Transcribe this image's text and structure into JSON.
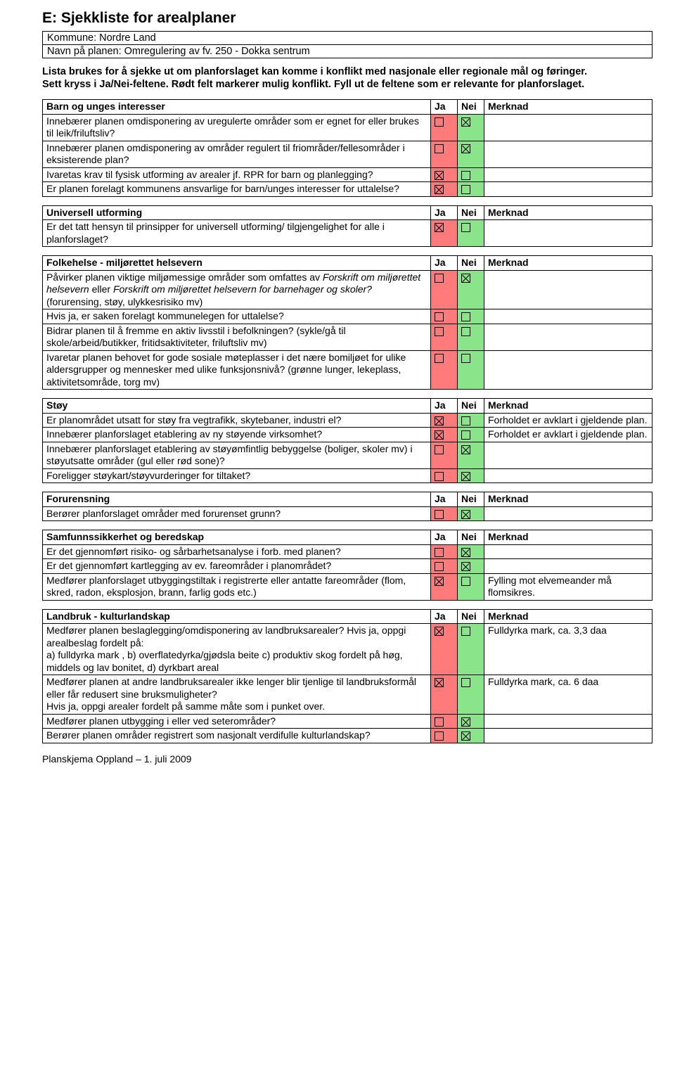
{
  "title": "E:  Sjekkliste for arealplaner",
  "meta": {
    "kommune": "Kommune: Nordre Land",
    "navn": "Navn på planen: Omregulering av fv. 250 - Dokka sentrum"
  },
  "intro_line1": "Lista brukes for å sjekke ut om planforslaget kan komme i konflikt med nasjonale eller regionale mål og føringer.",
  "intro_line2": "Sett kryss i Ja/Nei-feltene. Rødt felt markerer mulig konflikt. Fyll ut de feltene som er relevante for planforslaget.",
  "headers": {
    "ja": "Ja",
    "nei": "Nei",
    "merknad": "Merknad"
  },
  "colors": {
    "ja_bg": "#ff7a7a",
    "nei_bg": "#8ae48a",
    "border": "#000000",
    "text": "#000000",
    "background": "#ffffff"
  },
  "sections": [
    {
      "title": "Barn og unges interesser",
      "rows": [
        {
          "q": "Innebærer planen omdisponering av uregulerte områder som er egnet for eller brukes til leik/friluftsliv?",
          "ja": false,
          "nei": true,
          "m": ""
        },
        {
          "q": "Innebærer planen omdisponering av områder regulert til friområder/fellesområder i eksisterende plan?",
          "ja": false,
          "nei": true,
          "m": ""
        },
        {
          "q": "Ivaretas krav til fysisk utforming av arealer jf. RPR for barn og planlegging?",
          "ja": true,
          "nei": false,
          "m": ""
        },
        {
          "q": "Er planen forelagt kommunens ansvarlige for barn/unges interesser for uttalelse?",
          "ja": true,
          "nei": false,
          "m": ""
        }
      ]
    },
    {
      "title": "Universell utforming",
      "rows": [
        {
          "q": "Er det tatt hensyn til prinsipper for universell utforming/ tilgjengelighet for alle i planforslaget?",
          "ja": true,
          "nei": false,
          "m": ""
        }
      ]
    },
    {
      "title": "Folkehelse - miljørettet helsevern",
      "rows": [
        {
          "q_html": "Påvirker planen viktige miljømessige områder som omfattes av <span class='italic'>Forskrift om miljørettet helsevern</span> eller <span class='italic'>Forskrift om miljørettet helsevern for barnehager og skoler?</span> (forurensing, støy, ulykkesrisiko mv)",
          "ja": false,
          "nei": true,
          "m": ""
        },
        {
          "q": "Hvis ja, er saken forelagt kommunelegen for uttalelse?",
          "ja": false,
          "nei": false,
          "m": ""
        },
        {
          "q": "Bidrar planen til å fremme en aktiv livsstil i befolkningen? (sykle/gå til skole/arbeid/butikker, fritidsaktiviteter, friluftsliv mv)",
          "ja": false,
          "nei": false,
          "m": ""
        },
        {
          "q": "Ivaretar planen behovet for gode sosiale møteplasser i det nære bomiljøet for ulike aldersgrupper og mennesker med ulike funksjonsnivå? (grønne lunger, lekeplass, aktivitetsområde, torg mv)",
          "ja": false,
          "nei": false,
          "m": ""
        }
      ]
    },
    {
      "title": "Støy",
      "rows": [
        {
          "q": "Er planområdet utsatt for støy fra vegtrafikk, skytebaner, industri el?",
          "ja": true,
          "nei": false,
          "m": "Forholdet er avklart i gjeldende plan."
        },
        {
          "q": "Innebærer planforslaget etablering av ny støyende virksomhet?",
          "ja": true,
          "nei": false,
          "m": "Forholdet er avklart i gjeldende plan."
        },
        {
          "q": "Innebærer planforslaget etablering av støyømfintlig bebyggelse (boliger, skoler mv) i støyutsatte områder (gul eller rød sone)?",
          "ja": false,
          "nei": true,
          "m": ""
        },
        {
          "q": "Foreligger støykart/støyvurderinger for tiltaket?",
          "ja": false,
          "nei": true,
          "m": ""
        }
      ]
    },
    {
      "title": "Forurensning",
      "rows": [
        {
          "q": "Berører planforslaget områder med forurenset grunn?",
          "ja": false,
          "nei": true,
          "m": ""
        }
      ]
    },
    {
      "title": "Samfunnssikkerhet og beredskap",
      "rows": [
        {
          "q": "Er det gjennomført risiko- og sårbarhetsanalyse i forb. med planen?",
          "ja": false,
          "nei": true,
          "m": ""
        },
        {
          "q": "Er det gjennomført kartlegging av ev. fareområder i planområdet?",
          "ja": false,
          "nei": true,
          "m": ""
        },
        {
          "q": "Medfører planforslaget utbyggingstiltak i registrerte eller antatte fareområder (flom, skred, radon, eksplosjon, brann, farlig gods etc.)",
          "ja": true,
          "nei": false,
          "m": "Fylling mot elvemeander må flomsikres."
        }
      ]
    },
    {
      "title": "Landbruk - kulturlandskap",
      "rows": [
        {
          "q": "Medfører planen beslaglegging/omdisponering av landbruksarealer? Hvis ja, oppgi arealbeslag fordelt på:\na) fulldyrka mark , b) overflatedyrka/gjødsla beite  c) produktiv skog fordelt på høg, middels og lav bonitet, d) dyrkbart areal",
          "ja": true,
          "nei": false,
          "m": "Fulldyrka mark, ca. 3,3 daa"
        },
        {
          "q": "Medfører planen at andre landbruksarealer ikke lenger blir tjenlige til landbruksformål eller får redusert sine bruksmuligheter?\nHvis ja, oppgi arealer fordelt på samme måte som i punket over.",
          "ja": true,
          "nei": false,
          "m": "Fulldyrka mark, ca. 6 daa"
        },
        {
          "q": "Medfører planen utbygging i eller ved seterområder?",
          "ja": false,
          "nei": true,
          "m": ""
        },
        {
          "q": "Berører planen områder registrert som nasjonalt verdifulle kulturlandskap?",
          "ja": false,
          "nei": true,
          "m": ""
        }
      ]
    }
  ],
  "footer": "Planskjema Oppland – 1. juli 2009"
}
